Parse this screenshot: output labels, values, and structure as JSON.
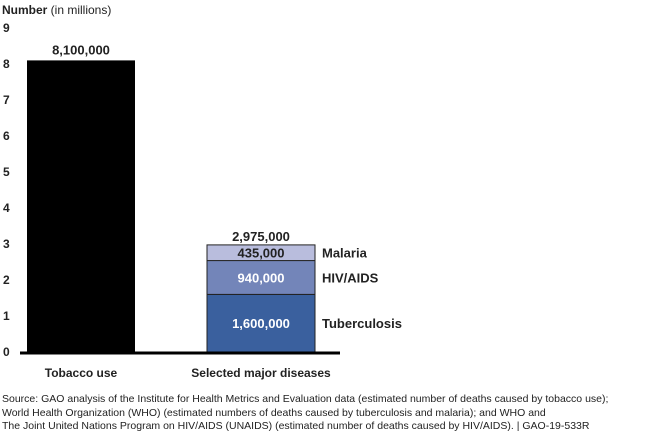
{
  "chart_data": {
    "type": "bar",
    "stacked": true,
    "ylabel_bold": "Number",
    "ylabel_rest": " (in millions)",
    "ylim": [
      0,
      9
    ],
    "yticks": [
      "0",
      "1",
      "2",
      "3",
      "4",
      "5",
      "6",
      "7",
      "8",
      "9"
    ],
    "grid": false,
    "categories": [
      "Tobacco use",
      "Selected major diseases"
    ],
    "tobacco": {
      "value": 8.1,
      "label": "8,100,000",
      "color": "#000000"
    },
    "diseases_total_label": "2,975,000",
    "series": [
      {
        "name": "Tuberculosis",
        "value": 1.6,
        "label": "1,600,000",
        "color": "#3a609e",
        "label_color": "#ffffff"
      },
      {
        "name": "HIV/AIDS",
        "value": 0.94,
        "label": "940,000",
        "color": "#7385b9",
        "label_color": "#ffffff"
      },
      {
        "name": "Malaria",
        "value": 0.435,
        "label": "435,000",
        "color": "#b9bddd",
        "label_color": "#222222"
      }
    ]
  },
  "source": "Source: GAO analysis of the Institute for Health Metrics and Evaluation data (estimated number of deaths caused by tobacco use);\nWorld Health Organization (WHO) (estimated numbers of deaths caused by tuberculosis and malaria); and WHO and\nThe Joint United Nations Program on HIV/AIDS (UNAIDS) (estimated number of deaths caused by HIV/AIDS).  |  GAO-19-533R"
}
